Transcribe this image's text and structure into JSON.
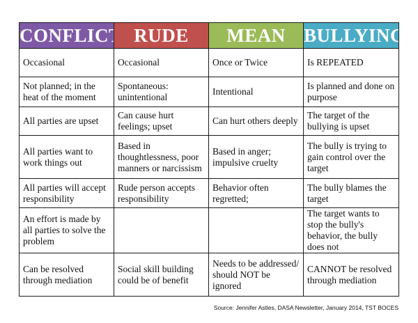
{
  "headers": [
    {
      "label": "CONFLICT",
      "color": "#7e5aa6"
    },
    {
      "label": "RUDE",
      "color": "#c0504d"
    },
    {
      "label": "MEAN",
      "color": "#9bbb59"
    },
    {
      "label": "BULLYING",
      "color": "#4bacc6"
    }
  ],
  "rows": [
    [
      "Occasional",
      "Occasional",
      "Once or Twice",
      "Is REPEATED"
    ],
    [
      "Not planned; in the heat of the moment",
      "Spontaneous: unintentional",
      "Intentional",
      "Is planned and done on purpose"
    ],
    [
      "All parties are upset",
      "Can cause hurt feelings; upset",
      "Can hurt others deeply",
      "The target of the bullying is upset"
    ],
    [
      "All parties want to work things out",
      "Based in thoughtlessness, poor manners or narcissism",
      "Based in anger; impulsive cruelty",
      "The bully is trying to gain control over the target"
    ],
    [
      "All parties will accept responsibility",
      "Rude person accepts responsibility",
      "Behavior often regretted;",
      "The bully blames the target"
    ],
    [
      "An effort is made by all parties to solve the problem",
      "",
      "",
      "The target wants to stop the bully's behavior, the bully does not"
    ],
    [
      "Can be resolved through mediation",
      "Social skill building could be of benefit",
      "Needs to be addressed/ should NOT be ignored",
      "CANNOT be resolved through mediation"
    ]
  ],
  "source": "Source: Jennifer Astles, DASA Newsletter, January 2014, TST BOCES"
}
